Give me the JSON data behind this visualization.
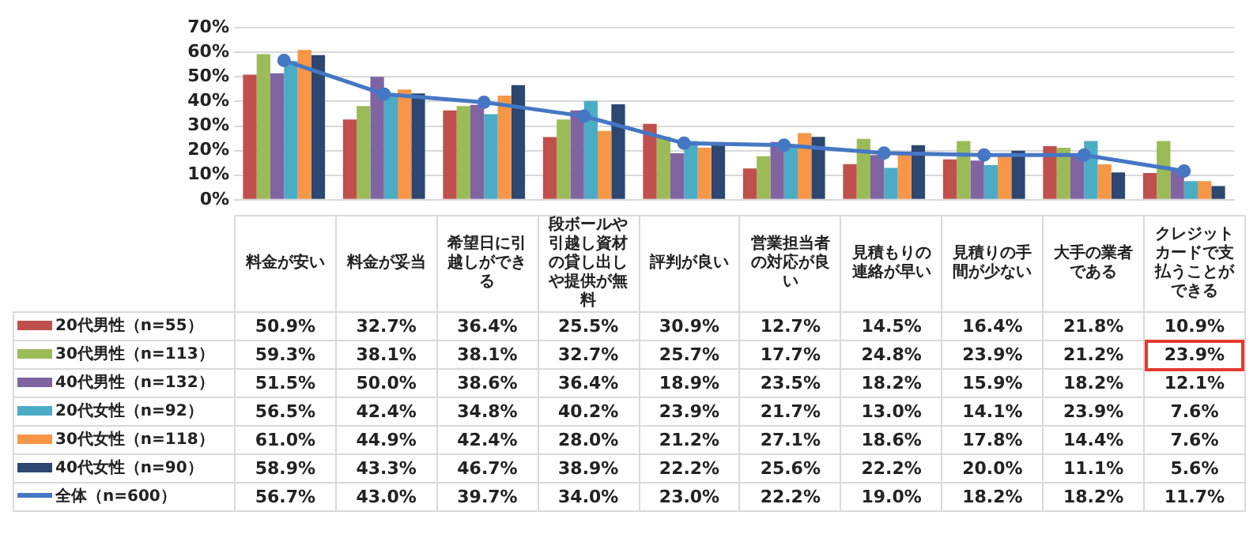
{
  "chart_data": {
    "type": "bar",
    "categories": [
      "料金が安い",
      "料金が妥当",
      "希望日に引越しができる",
      "段ボールや引越し資材の貸し出しや提供が無料",
      "評判が良い",
      "営業担当者の対応が良い",
      "見積もりの連絡が早い",
      "見積りの手間が少ない",
      "大手の業者である",
      "クレジットカードで支払うことができる"
    ],
    "series": [
      {
        "name": "20代男性（n=55）",
        "color": "#c0504d",
        "values": [
          50.9,
          32.7,
          36.4,
          25.5,
          30.9,
          12.7,
          14.5,
          16.4,
          21.8,
          10.9
        ],
        "value_labels": [
          "50.9%",
          "32.7%",
          "36.4%",
          "25.5%",
          "30.9%",
          "12.7%",
          "14.5%",
          "16.4%",
          "21.8%",
          "10.9%"
        ]
      },
      {
        "name": "30代男性（n=113）",
        "color": "#9bbb59",
        "values": [
          59.3,
          38.1,
          38.1,
          32.7,
          25.7,
          17.7,
          24.8,
          23.9,
          21.2,
          23.9
        ],
        "value_labels": [
          "59.3%",
          "38.1%",
          "38.1%",
          "32.7%",
          "25.7%",
          "17.7%",
          "24.8%",
          "23.9%",
          "21.2%",
          "23.9%"
        ]
      },
      {
        "name": "40代男性（n=132）",
        "color": "#8064a2",
        "values": [
          51.5,
          50.0,
          38.6,
          36.4,
          18.9,
          23.5,
          18.2,
          15.9,
          18.2,
          12.1
        ],
        "value_labels": [
          "51.5%",
          "50.0%",
          "38.6%",
          "36.4%",
          "18.9%",
          "23.5%",
          "18.2%",
          "15.9%",
          "18.2%",
          "12.1%"
        ]
      },
      {
        "name": "20代女性（n=92）",
        "color": "#4bacc6",
        "values": [
          56.5,
          42.4,
          34.8,
          40.2,
          23.9,
          21.7,
          13.0,
          14.1,
          23.9,
          7.6
        ],
        "value_labels": [
          "56.5%",
          "42.4%",
          "34.8%",
          "40.2%",
          "23.9%",
          "21.7%",
          "13.0%",
          "14.1%",
          "23.9%",
          "7.6%"
        ]
      },
      {
        "name": "30代女性（n=118）",
        "color": "#f79646",
        "values": [
          61.0,
          44.9,
          42.4,
          28.0,
          21.2,
          27.1,
          18.6,
          17.8,
          14.4,
          7.6
        ],
        "value_labels": [
          "61.0%",
          "44.9%",
          "42.4%",
          "28.0%",
          "21.2%",
          "27.1%",
          "18.6%",
          "17.8%",
          "14.4%",
          "7.6%"
        ]
      },
      {
        "name": "40代女性（n=90）",
        "color": "#2c4770",
        "values": [
          58.9,
          43.3,
          46.7,
          38.9,
          22.2,
          25.6,
          22.2,
          20.0,
          11.1,
          5.6
        ],
        "value_labels": [
          "58.9%",
          "43.3%",
          "46.7%",
          "38.9%",
          "22.2%",
          "25.6%",
          "22.2%",
          "20.0%",
          "11.1%",
          "5.6%"
        ]
      },
      {
        "name": "全体（n=600）",
        "type": "line",
        "color": "#4577c4",
        "values": [
          56.7,
          43.0,
          39.7,
          34.0,
          23.0,
          22.2,
          19.0,
          18.2,
          18.2,
          11.7
        ],
        "value_labels": [
          "56.7%",
          "43.0%",
          "39.7%",
          "34.0%",
          "23.0%",
          "22.2%",
          "19.0%",
          "18.2%",
          "18.2%",
          "11.7%"
        ]
      }
    ],
    "ylim": [
      0,
      70
    ],
    "yticks": [
      {
        "value": 0,
        "label": "0%"
      },
      {
        "value": 10,
        "label": "10%"
      },
      {
        "value": 20,
        "label": "20%"
      },
      {
        "value": 30,
        "label": "30%"
      },
      {
        "value": 40,
        "label": "40%"
      },
      {
        "value": 50,
        "label": "50%"
      },
      {
        "value": 60,
        "label": "60%"
      },
      {
        "value": 70,
        "label": "70%"
      }
    ],
    "grid": "y",
    "legend": "bottom left",
    "marker": "circle",
    "line_style": "solid"
  }
}
